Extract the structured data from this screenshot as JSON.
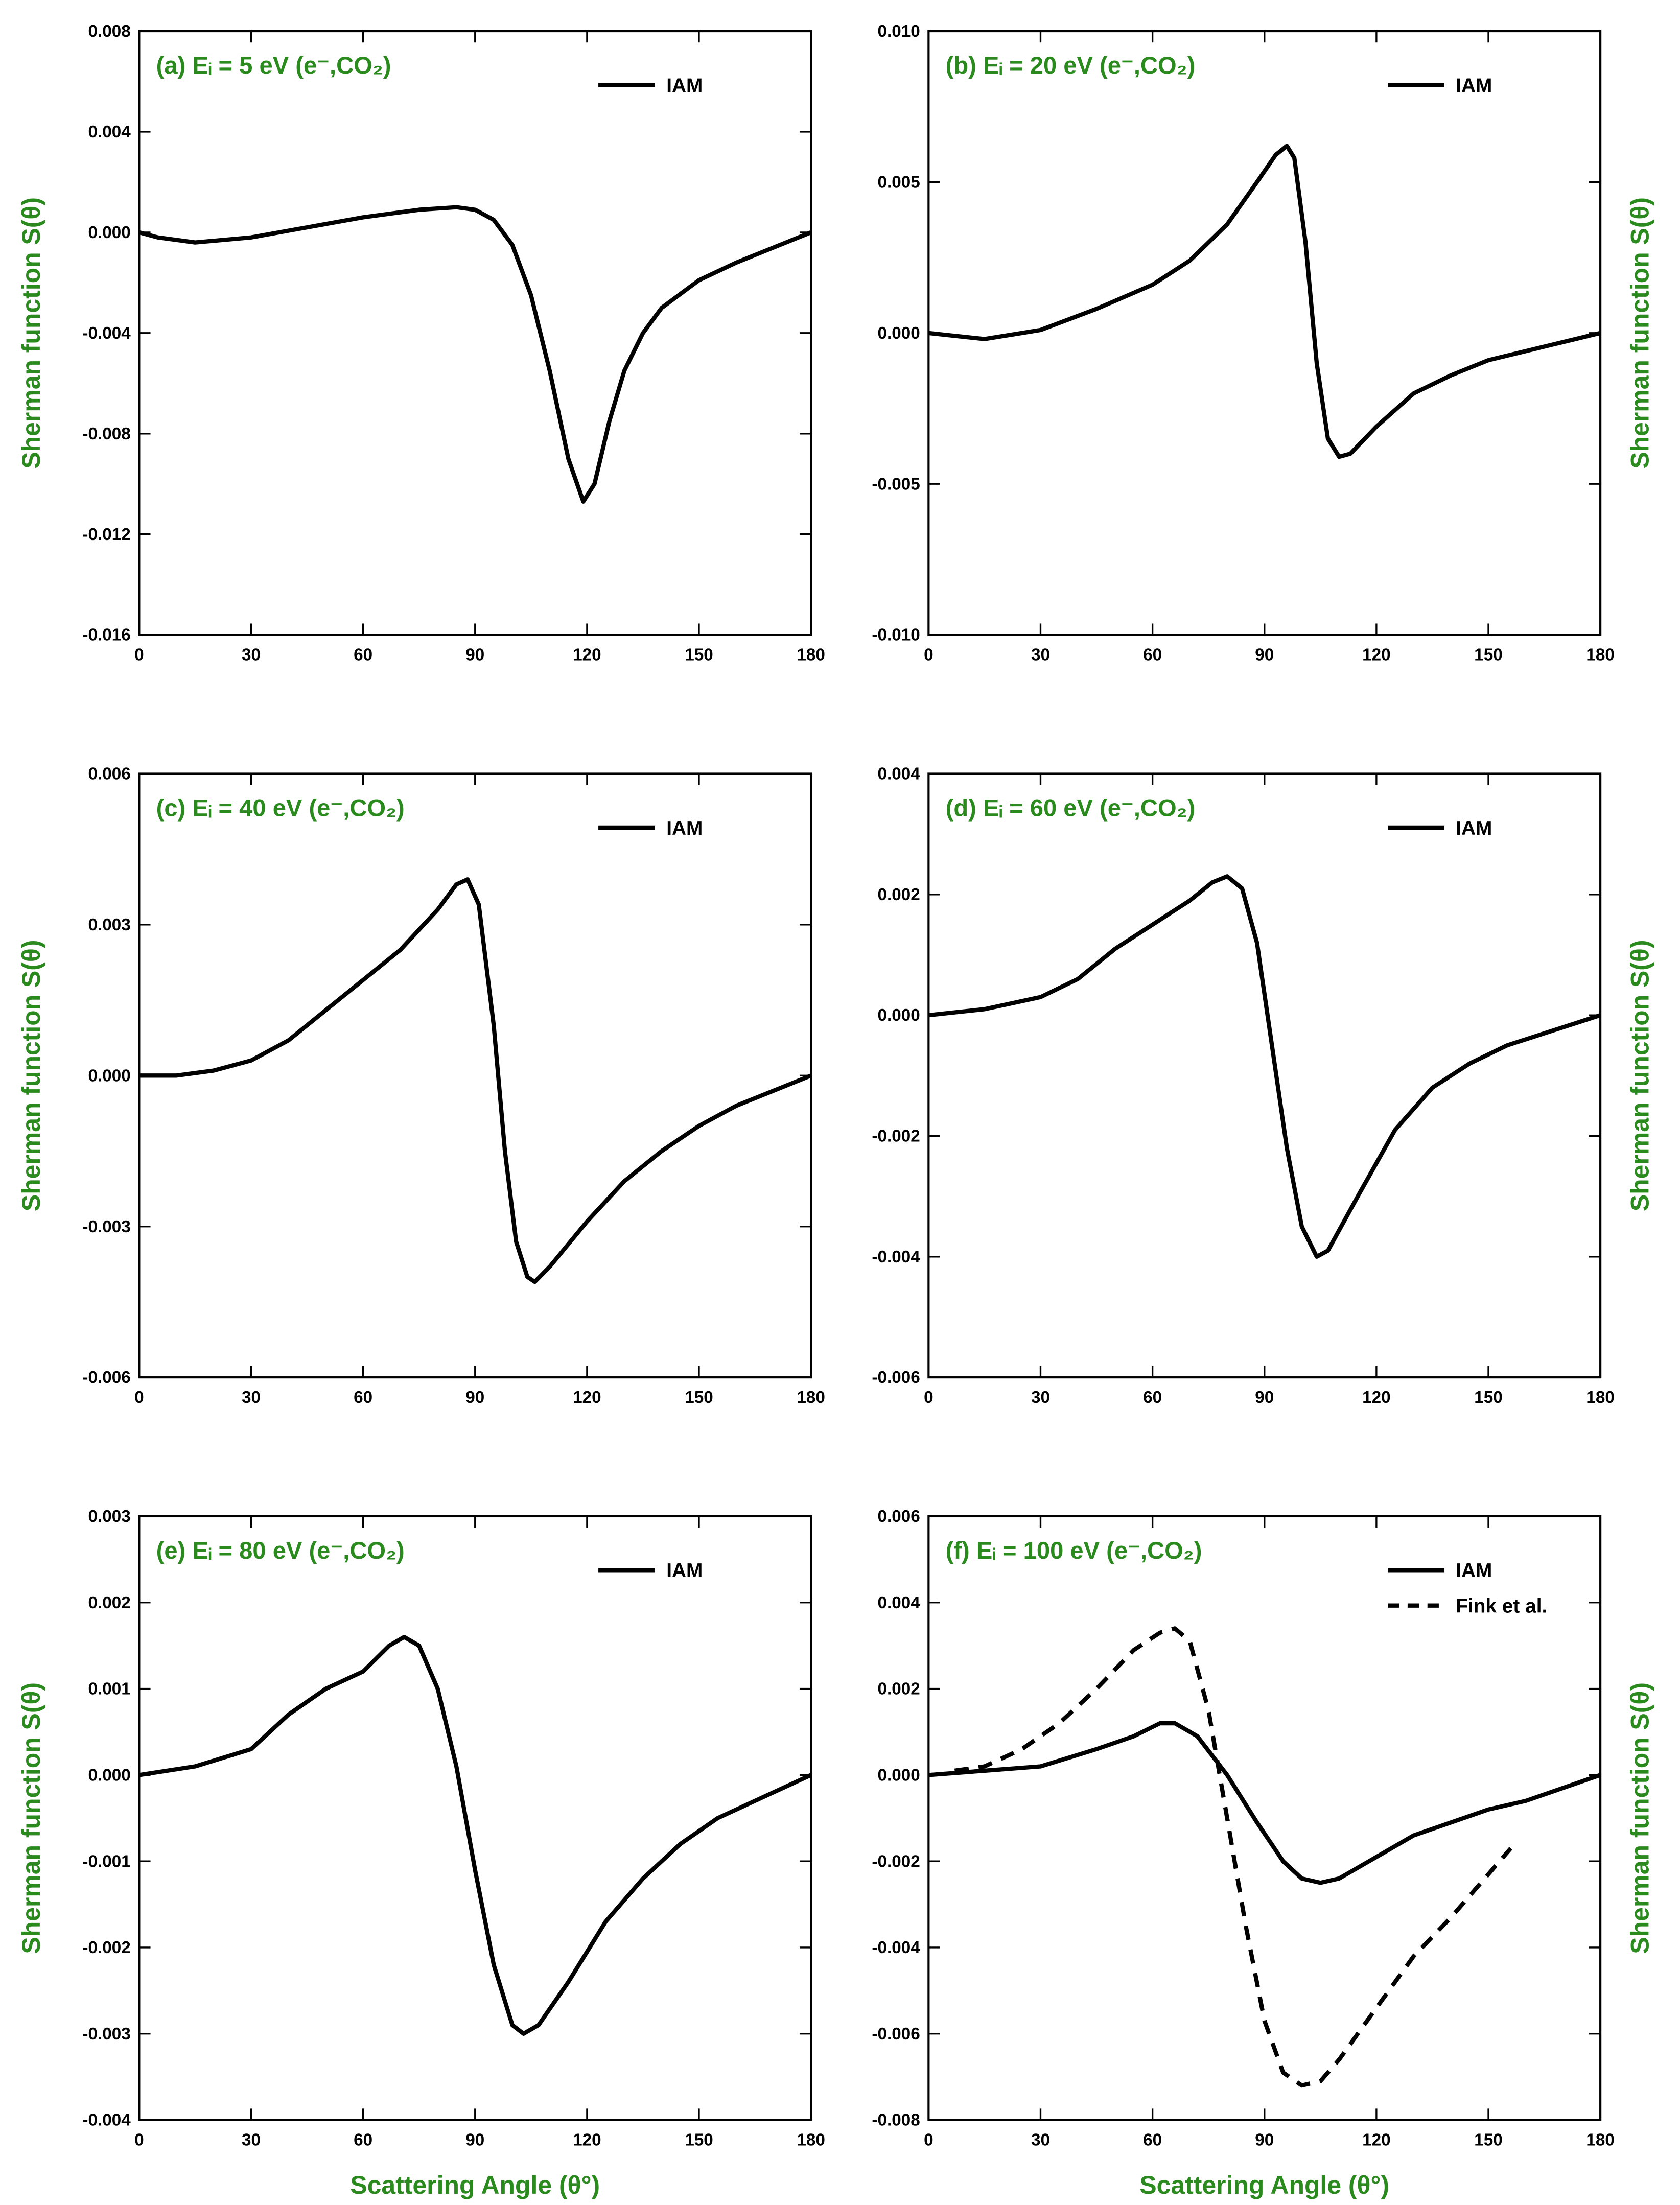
{
  "chart_data": [
    {
      "type": "line",
      "title": "(a) Eᵢ = 5 eV (e⁻,CO₂)",
      "ylabel": "Sherman function S(θ)",
      "text_color": "#2a8a1e",
      "xlim": [
        0,
        180
      ],
      "xticks": [
        0,
        30,
        60,
        90,
        120,
        150,
        180
      ],
      "ylim": [
        -0.016,
        0.008
      ],
      "yticks": [
        -0.016,
        -0.012,
        -0.008,
        -0.004,
        {
          "value": 0,
          "label": "0.000"
        },
        0.004,
        0.008
      ],
      "legend": "upper right",
      "series": [
        {
          "name": "IAM",
          "color": "#000000",
          "dash": false,
          "x": [
            0,
            5,
            15,
            30,
            45,
            60,
            75,
            85,
            90,
            95,
            100,
            105,
            110,
            115,
            119,
            122,
            126,
            130,
            135,
            140,
            150,
            160,
            170,
            180
          ],
          "values": [
            0,
            -0.0002,
            -0.0004,
            -0.0002,
            0.0002,
            0.0006,
            0.0009,
            0.001,
            0.0009,
            0.0005,
            -0.0005,
            -0.0025,
            -0.0055,
            -0.009,
            -0.0107,
            -0.01,
            -0.0075,
            -0.0055,
            -0.004,
            -0.003,
            -0.0019,
            -0.0012,
            -0.0006,
            0
          ]
        }
      ]
    },
    {
      "type": "line",
      "title": "(b) Eᵢ = 20 eV (e⁻,CO₂)",
      "ylabel": "Sherman function S(θ)",
      "text_color": "#2a8a1e",
      "xlim": [
        0,
        180
      ],
      "xticks": [
        0,
        30,
        60,
        90,
        120,
        150,
        180
      ],
      "ylim": [
        -0.01,
        0.01
      ],
      "yticks": [
        {
          "value": -0.01,
          "label": "-0.010"
        },
        -0.005,
        {
          "value": 0,
          "label": "0.000"
        },
        0.005,
        {
          "value": 0.01,
          "label": "0.010"
        }
      ],
      "legend": "upper right",
      "series": [
        {
          "name": "IAM",
          "color": "#000000",
          "dash": false,
          "x": [
            0,
            15,
            30,
            45,
            60,
            70,
            80,
            88,
            93,
            96,
            98,
            101,
            104,
            107,
            110,
            113,
            120,
            130,
            140,
            150,
            160,
            170,
            180
          ],
          "values": [
            0,
            -0.0002,
            0.0001,
            0.0008,
            0.0016,
            0.0024,
            0.0036,
            0.005,
            0.0059,
            0.0062,
            0.0058,
            0.003,
            -0.001,
            -0.0035,
            -0.0041,
            -0.004,
            -0.0031,
            -0.002,
            -0.0014,
            -0.0009,
            -0.0006,
            -0.0003,
            0
          ]
        }
      ]
    },
    {
      "type": "line",
      "title": "(c) Eᵢ = 40 eV (e⁻,CO₂)",
      "ylabel": "Sherman function S(θ)",
      "text_color": "#2a8a1e",
      "xlim": [
        0,
        180
      ],
      "xticks": [
        0,
        30,
        60,
        90,
        120,
        150,
        180
      ],
      "ylim": [
        -0.006,
        0.006
      ],
      "yticks": [
        -0.006,
        -0.003,
        {
          "value": 0,
          "label": "0.000"
        },
        0.003,
        0.006
      ],
      "legend": "upper right",
      "series": [
        {
          "name": "IAM",
          "color": "#000000",
          "dash": false,
          "x": [
            0,
            10,
            20,
            30,
            40,
            50,
            60,
            70,
            80,
            85,
            88,
            91,
            95,
            98,
            101,
            104,
            106,
            110,
            120,
            130,
            140,
            150,
            160,
            170,
            180
          ],
          "values": [
            0,
            0,
            0.0001,
            0.0003,
            0.0007,
            0.0013,
            0.0019,
            0.0025,
            0.0033,
            0.0038,
            0.0039,
            0.0034,
            0.001,
            -0.0015,
            -0.0033,
            -0.004,
            -0.0041,
            -0.0038,
            -0.0029,
            -0.0021,
            -0.0015,
            -0.001,
            -0.0006,
            -0.0003,
            0
          ]
        }
      ]
    },
    {
      "type": "line",
      "title": "(d) Eᵢ = 60 eV (e⁻,CO₂)",
      "ylabel": "Sherman function S(θ)",
      "text_color": "#2a8a1e",
      "xlim": [
        0,
        180
      ],
      "xticks": [
        0,
        30,
        60,
        90,
        120,
        150,
        180
      ],
      "ylim": [
        -0.006,
        0.004
      ],
      "yticks": [
        -0.006,
        -0.004,
        -0.002,
        {
          "value": 0,
          "label": "0.000"
        },
        0.002,
        0.004
      ],
      "legend": "upper right",
      "series": [
        {
          "name": "IAM",
          "color": "#000000",
          "dash": false,
          "x": [
            0,
            15,
            30,
            40,
            50,
            60,
            70,
            76,
            80,
            84,
            88,
            92,
            96,
            100,
            104,
            107,
            115,
            125,
            135,
            145,
            155,
            165,
            180
          ],
          "values": [
            0,
            0.0001,
            0.0003,
            0.0006,
            0.0011,
            0.0015,
            0.0019,
            0.0022,
            0.0023,
            0.0021,
            0.0012,
            -0.0005,
            -0.0022,
            -0.0035,
            -0.004,
            -0.0039,
            -0.003,
            -0.0019,
            -0.0012,
            -0.0008,
            -0.0005,
            -0.0003,
            0
          ]
        }
      ]
    },
    {
      "type": "line",
      "title": "(e) Eᵢ = 80 eV (e⁻,CO₂)",
      "ylabel": "Sherman function S(θ)",
      "xlabel": "Scattering Angle (θ°)",
      "text_color": "#2a8a1e",
      "xlim": [
        0,
        180
      ],
      "xticks": [
        0,
        30,
        60,
        90,
        120,
        150,
        180
      ],
      "ylim": [
        -0.004,
        0.003
      ],
      "yticks": [
        -0.004,
        -0.003,
        -0.002,
        -0.001,
        {
          "value": 0,
          "label": "0.000"
        },
        0.001,
        0.002,
        0.003
      ],
      "legend": "upper right",
      "series": [
        {
          "name": "IAM",
          "color": "#000000",
          "dash": false,
          "x": [
            0,
            15,
            30,
            40,
            50,
            60,
            67,
            71,
            75,
            80,
            85,
            90,
            95,
            100,
            103,
            107,
            115,
            125,
            135,
            145,
            155,
            165,
            180
          ],
          "values": [
            0,
            0.0001,
            0.0003,
            0.0007,
            0.001,
            0.0012,
            0.0015,
            0.0016,
            0.0015,
            0.001,
            0.0001,
            -0.0011,
            -0.0022,
            -0.0029,
            -0.003,
            -0.0029,
            -0.0024,
            -0.0017,
            -0.0012,
            -0.0008,
            -0.0005,
            -0.0003,
            0
          ]
        }
      ]
    },
    {
      "type": "line",
      "title": "(f) Eᵢ = 100 eV (e⁻,CO₂)",
      "ylabel": "Sherman function S(θ)",
      "xlabel": "Scattering Angle (θ°)",
      "text_color": "#2a8a1e",
      "xlim": [
        0,
        180
      ],
      "xticks": [
        0,
        30,
        60,
        90,
        120,
        150,
        180
      ],
      "ylim": [
        -0.008,
        0.006
      ],
      "yticks": [
        -0.008,
        -0.006,
        -0.004,
        -0.002,
        {
          "value": 0,
          "label": "0.000"
        },
        0.002,
        0.004,
        0.006
      ],
      "legend": "upper right",
      "series": [
        {
          "name": "IAM",
          "color": "#000000",
          "dash": false,
          "x": [
            0,
            15,
            30,
            45,
            55,
            62,
            66,
            72,
            80,
            88,
            95,
            100,
            105,
            110,
            120,
            130,
            140,
            150,
            160,
            170,
            180
          ],
          "values": [
            0,
            0.0001,
            0.0002,
            0.0006,
            0.0009,
            0.0012,
            0.0012,
            0.0009,
            0,
            -0.0011,
            -0.002,
            -0.0024,
            -0.0025,
            -0.0024,
            -0.0019,
            -0.0014,
            -0.0011,
            -0.0008,
            -0.0006,
            -0.0003,
            0
          ]
        },
        {
          "name": "Fink et al.",
          "color": "#000000",
          "dash": true,
          "x": [
            7,
            15,
            25,
            35,
            45,
            55,
            62,
            66,
            70,
            75,
            80,
            85,
            90,
            95,
            100,
            105,
            110,
            120,
            130,
            140,
            150,
            156
          ],
          "values": [
            0.0001,
            0.0002,
            0.0006,
            0.0012,
            0.002,
            0.0029,
            0.0033,
            0.0034,
            0.0031,
            0.0015,
            -0.001,
            -0.0035,
            -0.0057,
            -0.0069,
            -0.0072,
            -0.0071,
            -0.0066,
            -0.0054,
            -0.0042,
            -0.0033,
            -0.0023,
            -0.0017
          ]
        }
      ]
    }
  ]
}
